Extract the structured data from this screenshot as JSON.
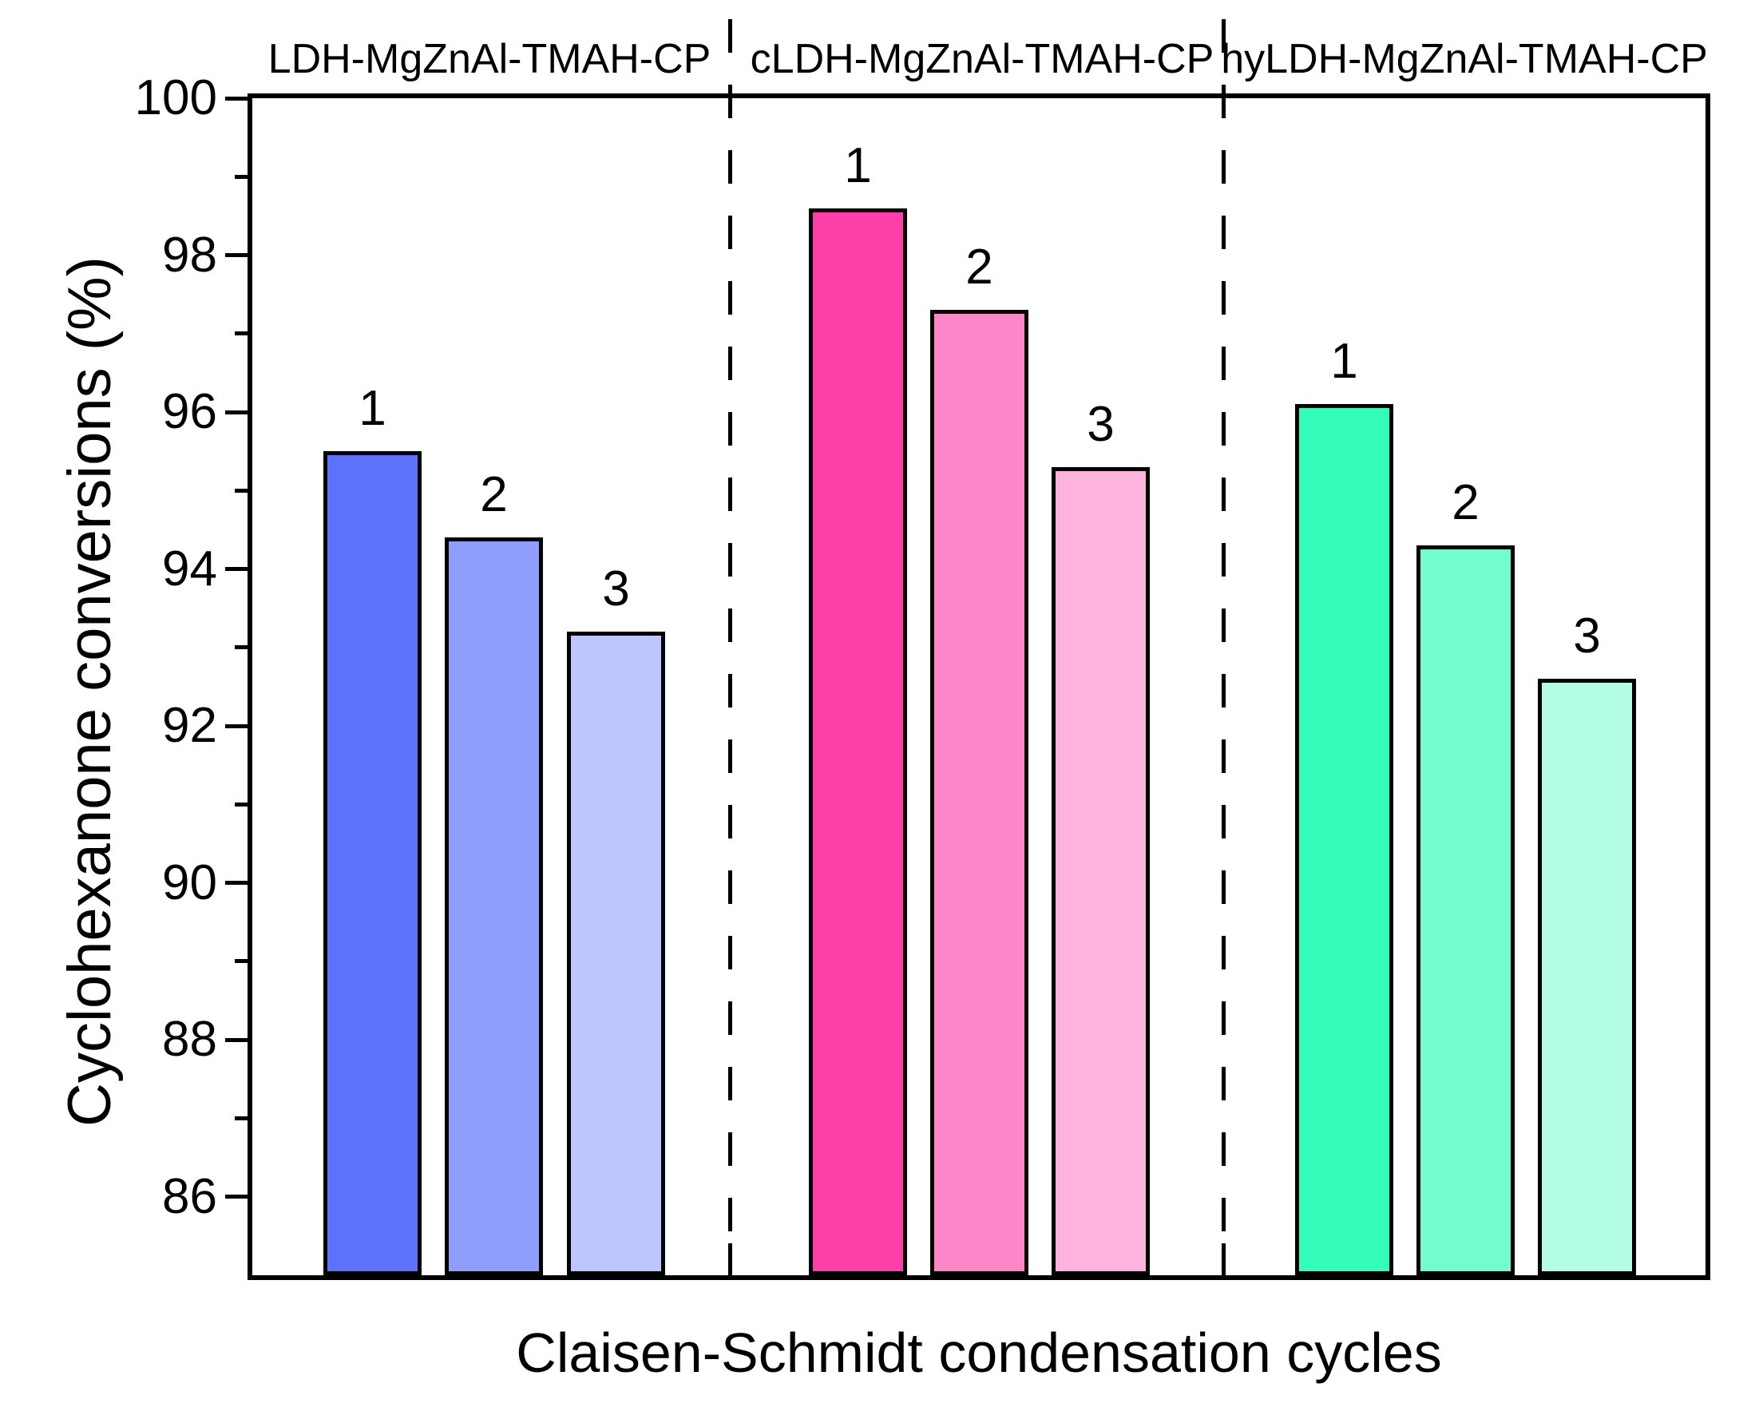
{
  "chart_data": {
    "type": "bar",
    "title": "",
    "ylabel": "Cyclohexanone conversions (%)",
    "xlabel": "Claisen-Schmidt condensation cycles",
    "ylim": [
      85,
      100
    ],
    "yticks_major": [
      86,
      88,
      90,
      92,
      94,
      96,
      98,
      100
    ],
    "yticks_minor": [
      87,
      89,
      91,
      93,
      95,
      97,
      99
    ],
    "grid": false,
    "legend": "none",
    "separator_style": "vertical-dashed-lines-between-groups",
    "bar_border_color": "#000000",
    "groups": [
      {
        "label": "LDH-MgZnAl-TMAH-CP",
        "cycles": [
          "1",
          "2",
          "3"
        ],
        "values": [
          95.5,
          94.4,
          93.2
        ],
        "colors": [
          "#5d72fa",
          "#8f9dfc",
          "#bdc7fd"
        ]
      },
      {
        "label": "cLDH-MgZnAl-TMAH-CP",
        "cycles": [
          "1",
          "2",
          "3"
        ],
        "values": [
          98.6,
          97.3,
          95.3
        ],
        "colors": [
          "#fc3fa9",
          "#fd86c9",
          "#feb3dd"
        ]
      },
      {
        "label": "hyLDH-MgZnAl-TMAH-CP",
        "cycles": [
          "1",
          "2",
          "3"
        ],
        "values": [
          96.1,
          94.3,
          92.6
        ],
        "colors": [
          "#34fcba",
          "#72fccf",
          "#b2fde4"
        ]
      }
    ]
  }
}
